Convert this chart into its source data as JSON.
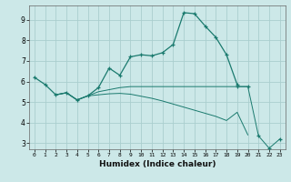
{
  "xlabel": "Humidex (Indice chaleur)",
  "background_color": "#cce8e8",
  "grid_color": "#aacece",
  "line_color": "#1a7a6e",
  "xlim": [
    -0.5,
    23.5
  ],
  "ylim": [
    2.7,
    9.7
  ],
  "yticks": [
    3,
    4,
    5,
    6,
    7,
    8,
    9
  ],
  "xticks": [
    0,
    1,
    2,
    3,
    4,
    5,
    6,
    7,
    8,
    9,
    10,
    11,
    12,
    13,
    14,
    15,
    16,
    17,
    18,
    19,
    20,
    21,
    22,
    23
  ],
  "line1_x": [
    0,
    1,
    2,
    3,
    4,
    5,
    6,
    7,
    8,
    9,
    10,
    11,
    12,
    13,
    14,
    15,
    16,
    17,
    18,
    19
  ],
  "line1_y": [
    6.2,
    5.85,
    5.35,
    5.45,
    5.1,
    5.3,
    5.7,
    6.65,
    6.3,
    7.2,
    7.3,
    7.25,
    7.4,
    7.8,
    9.35,
    9.3,
    8.7,
    8.15,
    7.3,
    5.85
  ],
  "line2_x": [
    2,
    3,
    4,
    5,
    6,
    7,
    8,
    9,
    10,
    11,
    12,
    13,
    14,
    15,
    16,
    17,
    18,
    19,
    20
  ],
  "line2_y": [
    5.35,
    5.45,
    5.1,
    5.3,
    5.5,
    5.6,
    5.7,
    5.75,
    5.75,
    5.75,
    5.75,
    5.75,
    5.75,
    5.75,
    5.75,
    5.75,
    5.75,
    5.75,
    5.75
  ],
  "line3_x": [
    2,
    3,
    4,
    5,
    6,
    7,
    8,
    9,
    10,
    11,
    12,
    13,
    14,
    15,
    16,
    17,
    18,
    19,
    20
  ],
  "line3_y": [
    5.35,
    5.45,
    5.1,
    5.3,
    5.35,
    5.4,
    5.42,
    5.38,
    5.28,
    5.18,
    5.05,
    4.9,
    4.75,
    4.6,
    4.45,
    4.3,
    4.1,
    4.5,
    3.4
  ],
  "line4_x": [
    19,
    20,
    21,
    22,
    23
  ],
  "line4_y": [
    5.75,
    5.75,
    3.35,
    2.75,
    3.2
  ]
}
